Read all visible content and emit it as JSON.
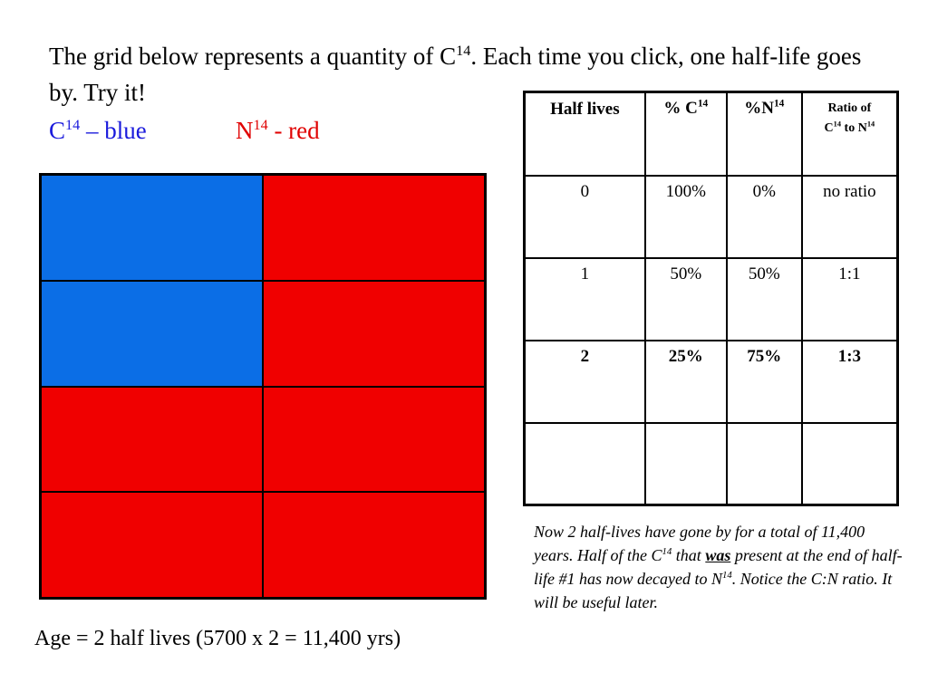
{
  "intro": {
    "part1": "The grid below represents a quantity of C",
    "sup1": "14",
    "part2": ". Each time you click, one half-life goes by. Try it!"
  },
  "legend": {
    "c_label": "C",
    "c_sup": "14",
    "c_suffix": " – blue",
    "n_label": "N",
    "n_sup": "14",
    "n_suffix": " - red",
    "blue_color": "#1a1adc",
    "red_color": "#e00000"
  },
  "grid": {
    "cells": [
      "blue",
      "red",
      "blue",
      "red",
      "red",
      "red",
      "red",
      "red"
    ],
    "blue_fill": "#0b6ee6",
    "red_fill": "#f00000"
  },
  "age_text": "Age = 2 half lives (5700 x 2 = 11,400 yrs)",
  "table": {
    "headers": {
      "half_lives": "Half lives",
      "pct_c": "% C",
      "pct_c_sup": "14",
      "pct_n": "%N",
      "pct_n_sup": "14",
      "ratio_a": "Ratio of",
      "ratio_c": "C",
      "ratio_c_sup": "14",
      "ratio_to": " to N",
      "ratio_n_sup": "14"
    },
    "rows": [
      {
        "half_lives": "0",
        "pct_c": "100%",
        "pct_n": "0%",
        "ratio": "no ratio"
      },
      {
        "half_lives": "1",
        "pct_c": "50%",
        "pct_n": "50%",
        "ratio": "1:1"
      },
      {
        "half_lives": "2",
        "pct_c": "25%",
        "pct_n": "75%",
        "ratio": "1:3"
      },
      {
        "half_lives": "",
        "pct_c": "",
        "pct_n": "",
        "ratio": ""
      }
    ]
  },
  "note": {
    "t1": "Now 2 half-lives have gone by for a total of  11,400 years. Half of the C",
    "sup1": "14",
    "t2": " that ",
    "was": "was",
    "t3": " present at the end of half-life #1 has now decayed to N",
    "sup2": "14",
    "t4": ". Notice the C:N ratio. It will be useful later."
  }
}
